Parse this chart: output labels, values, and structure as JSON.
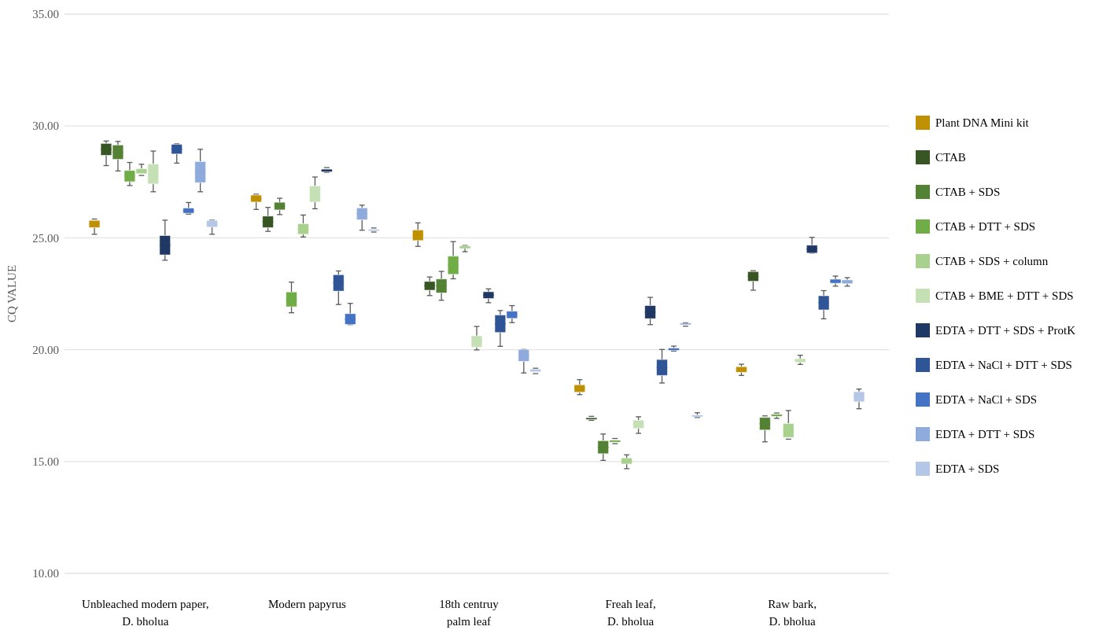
{
  "chart_data": {
    "type": "box",
    "ylabel": "CQ VALUE",
    "categories": [
      "Unbleached modern paper, D. bholua",
      "Modern papyrus",
      "18th centruy palm leaf",
      "Freah leaf, D. bholua",
      "Raw bark, D. bholua"
    ],
    "ylim": [
      10,
      35
    ],
    "yticks": [
      {
        "value": 10,
        "label": "10.00"
      },
      {
        "value": 15,
        "label": "15.00"
      },
      {
        "value": 20,
        "label": "20.00"
      },
      {
        "value": 25,
        "label": "25.00"
      },
      {
        "value": 30,
        "label": "30.00"
      },
      {
        "value": 35,
        "label": "35.00"
      }
    ],
    "grid": "y",
    "legend": "right",
    "series": [
      {
        "name": "Plant DNA Mini kit",
        "color": "#bf9000",
        "boxes": [
          {
            "low": 25.16,
            "q1": 25.46,
            "median": 25.62,
            "q3": 25.78,
            "high": 25.84
          },
          {
            "low": 26.27,
            "q1": 26.6,
            "median": 26.75,
            "q3": 26.91,
            "high": 26.95
          },
          {
            "low": 24.62,
            "q1": 24.88,
            "median": 25.12,
            "q3": 25.35,
            "high": 25.67
          },
          {
            "low": 17.99,
            "q1": 18.1,
            "median": 18.27,
            "q3": 18.43,
            "high": 18.66
          },
          {
            "low": 18.85,
            "q1": 18.99,
            "median": 19.12,
            "q3": 19.24,
            "high": 19.35
          }
        ]
      },
      {
        "name": "CTAB",
        "color": "#375623",
        "boxes": [
          {
            "low": 28.23,
            "q1": 28.69,
            "median": 28.96,
            "q3": 29.22,
            "high": 29.33
          },
          {
            "low": 25.29,
            "q1": 25.46,
            "median": 25.72,
            "q3": 25.97,
            "high": 26.36
          },
          {
            "low": 22.42,
            "q1": 22.66,
            "median": 22.86,
            "q3": 23.05,
            "high": 23.25
          },
          {
            "low": 16.84,
            "q1": 16.88,
            "median": 16.92,
            "q3": 16.95,
            "high": 17.02
          },
          {
            "low": 22.66,
            "q1": 23.06,
            "median": 23.28,
            "q3": 23.49,
            "high": 23.53
          }
        ]
      },
      {
        "name": "CTAB + SDS",
        "color": "#548235",
        "boxes": [
          {
            "low": 27.99,
            "q1": 28.51,
            "median": 28.83,
            "q3": 29.15,
            "high": 29.31
          },
          {
            "low": 26.04,
            "q1": 26.25,
            "median": 26.42,
            "q3": 26.59,
            "high": 26.77
          },
          {
            "low": 22.21,
            "q1": 22.54,
            "median": 22.85,
            "q3": 23.16,
            "high": 23.5
          },
          {
            "low": 15.05,
            "q1": 15.35,
            "median": 15.64,
            "q3": 15.93,
            "high": 16.23
          },
          {
            "low": 15.88,
            "q1": 16.41,
            "median": 16.69,
            "q3": 16.97,
            "high": 17.04
          }
        ]
      },
      {
        "name": "CTAB + DTT + SDS",
        "color": "#70ad47",
        "boxes": [
          {
            "low": 27.34,
            "q1": 27.51,
            "median": 27.76,
            "q3": 28.01,
            "high": 28.37
          },
          {
            "low": 21.65,
            "q1": 21.92,
            "median": 22.25,
            "q3": 22.58,
            "high": 23.02
          },
          {
            "low": 23.17,
            "q1": 23.37,
            "median": 23.78,
            "q3": 24.18,
            "high": 24.83
          },
          {
            "low": 15.8,
            "q1": 15.87,
            "median": 15.91,
            "q3": 15.95,
            "high": 16.03
          },
          {
            "low": 16.93,
            "q1": 17.02,
            "median": 17.07,
            "q3": 17.11,
            "high": 17.17
          }
        ]
      },
      {
        "name": "CTAB + SDS + column",
        "color": "#a9d18e",
        "boxes": [
          {
            "low": 27.79,
            "q1": 27.87,
            "median": 27.98,
            "q3": 28.09,
            "high": 28.29
          },
          {
            "low": 25.04,
            "q1": 25.16,
            "median": 25.4,
            "q3": 25.63,
            "high": 26.02
          },
          {
            "low": 24.38,
            "q1": 24.52,
            "median": 24.58,
            "q3": 24.64,
            "high": 24.66
          },
          {
            "low": 14.68,
            "q1": 14.89,
            "median": 15.02,
            "q3": 15.16,
            "high": 15.3
          },
          {
            "low": 16.0,
            "q1": 16.08,
            "median": 16.39,
            "q3": 16.7,
            "high": 17.28
          }
        ]
      },
      {
        "name": "CTAB + BME + DTT + SDS",
        "color": "#c5e0b4",
        "boxes": [
          {
            "low": 27.06,
            "q1": 27.41,
            "median": 27.86,
            "q3": 28.3,
            "high": 28.88
          },
          {
            "low": 26.3,
            "q1": 26.6,
            "median": 26.96,
            "q3": 27.32,
            "high": 27.72
          },
          {
            "low": 19.99,
            "q1": 20.11,
            "median": 20.36,
            "q3": 20.62,
            "high": 21.04
          },
          {
            "low": 16.26,
            "q1": 16.48,
            "median": 16.66,
            "q3": 16.85,
            "high": 17.0
          },
          {
            "low": 19.34,
            "q1": 19.43,
            "median": 19.52,
            "q3": 19.6,
            "high": 19.75
          }
        ]
      },
      {
        "name": "EDTA + DTT + SDS + ProtK",
        "color": "#203864",
        "boxes": [
          {
            "low": 24.0,
            "q1": 24.24,
            "median": 24.67,
            "q3": 25.1,
            "high": 25.79
          },
          {
            "low": 27.93,
            "q1": 27.95,
            "median": 28.01,
            "q3": 28.07,
            "high": 28.14
          },
          {
            "low": 22.1,
            "q1": 22.29,
            "median": 22.44,
            "q3": 22.59,
            "high": 22.72
          },
          {
            "low": 21.12,
            "q1": 21.39,
            "median": 21.68,
            "q3": 21.97,
            "high": 22.34
          },
          {
            "low": 24.32,
            "q1": 24.32,
            "median": 24.5,
            "q3": 24.67,
            "high": 25.02
          }
        ]
      },
      {
        "name": "EDTA + NaCl + DTT + SDS",
        "color": "#2f5597",
        "boxes": [
          {
            "low": 28.34,
            "q1": 28.75,
            "median": 28.96,
            "q3": 29.18,
            "high": 29.2
          },
          {
            "low": 22.02,
            "q1": 22.62,
            "median": 22.98,
            "q3": 23.35,
            "high": 23.52
          },
          {
            "low": 20.15,
            "q1": 20.77,
            "median": 21.16,
            "q3": 21.55,
            "high": 21.75
          },
          {
            "low": 18.51,
            "q1": 18.85,
            "median": 19.2,
            "q3": 19.56,
            "high": 20.01
          },
          {
            "low": 21.38,
            "q1": 21.78,
            "median": 22.1,
            "q3": 22.41,
            "high": 22.64
          }
        ]
      },
      {
        "name": "EDTA + NaCl + SDS",
        "color": "#4472c4",
        "boxes": [
          {
            "low": 26.06,
            "q1": 26.1,
            "median": 26.22,
            "q3": 26.33,
            "high": 26.58
          },
          {
            "low": 21.12,
            "q1": 21.13,
            "median": 21.37,
            "q3": 21.61,
            "high": 22.07
          },
          {
            "low": 21.21,
            "q1": 21.4,
            "median": 21.56,
            "q3": 21.72,
            "high": 21.97
          },
          {
            "low": 19.94,
            "q1": 19.97,
            "median": 20.02,
            "q3": 20.07,
            "high": 20.16
          },
          {
            "low": 22.84,
            "q1": 22.97,
            "median": 23.06,
            "q3": 23.15,
            "high": 23.29
          }
        ]
      },
      {
        "name": "EDTA + DTT + SDS",
        "color": "#8faadc",
        "boxes": [
          {
            "low": 27.06,
            "q1": 27.47,
            "median": 27.94,
            "q3": 28.41,
            "high": 28.96
          },
          {
            "low": 25.34,
            "q1": 25.81,
            "median": 26.08,
            "q3": 26.34,
            "high": 26.46
          },
          {
            "low": 18.96,
            "q1": 19.48,
            "median": 19.74,
            "q3": 20.01,
            "high": 20.01
          },
          {
            "low": 21.05,
            "q1": 21.12,
            "median": 21.15,
            "q3": 21.18,
            "high": 21.2
          },
          {
            "low": 22.84,
            "q1": 22.95,
            "median": 23.04,
            "q3": 23.12,
            "high": 23.22
          }
        ]
      },
      {
        "name": "EDTA + SDS",
        "color": "#b4c7e7",
        "boxes": [
          {
            "low": 25.16,
            "q1": 25.48,
            "median": 25.63,
            "q3": 25.78,
            "high": 25.79
          },
          {
            "low": 25.26,
            "q1": 25.31,
            "median": 25.34,
            "q3": 25.38,
            "high": 25.44
          },
          {
            "low": 18.93,
            "q1": 19.01,
            "median": 19.07,
            "q3": 19.13,
            "high": 19.17
          },
          {
            "low": 16.97,
            "q1": 17.0,
            "median": 17.04,
            "q3": 17.08,
            "high": 17.18
          },
          {
            "low": 17.36,
            "q1": 17.67,
            "median": 17.9,
            "q3": 18.12,
            "high": 18.24
          }
        ]
      }
    ]
  }
}
